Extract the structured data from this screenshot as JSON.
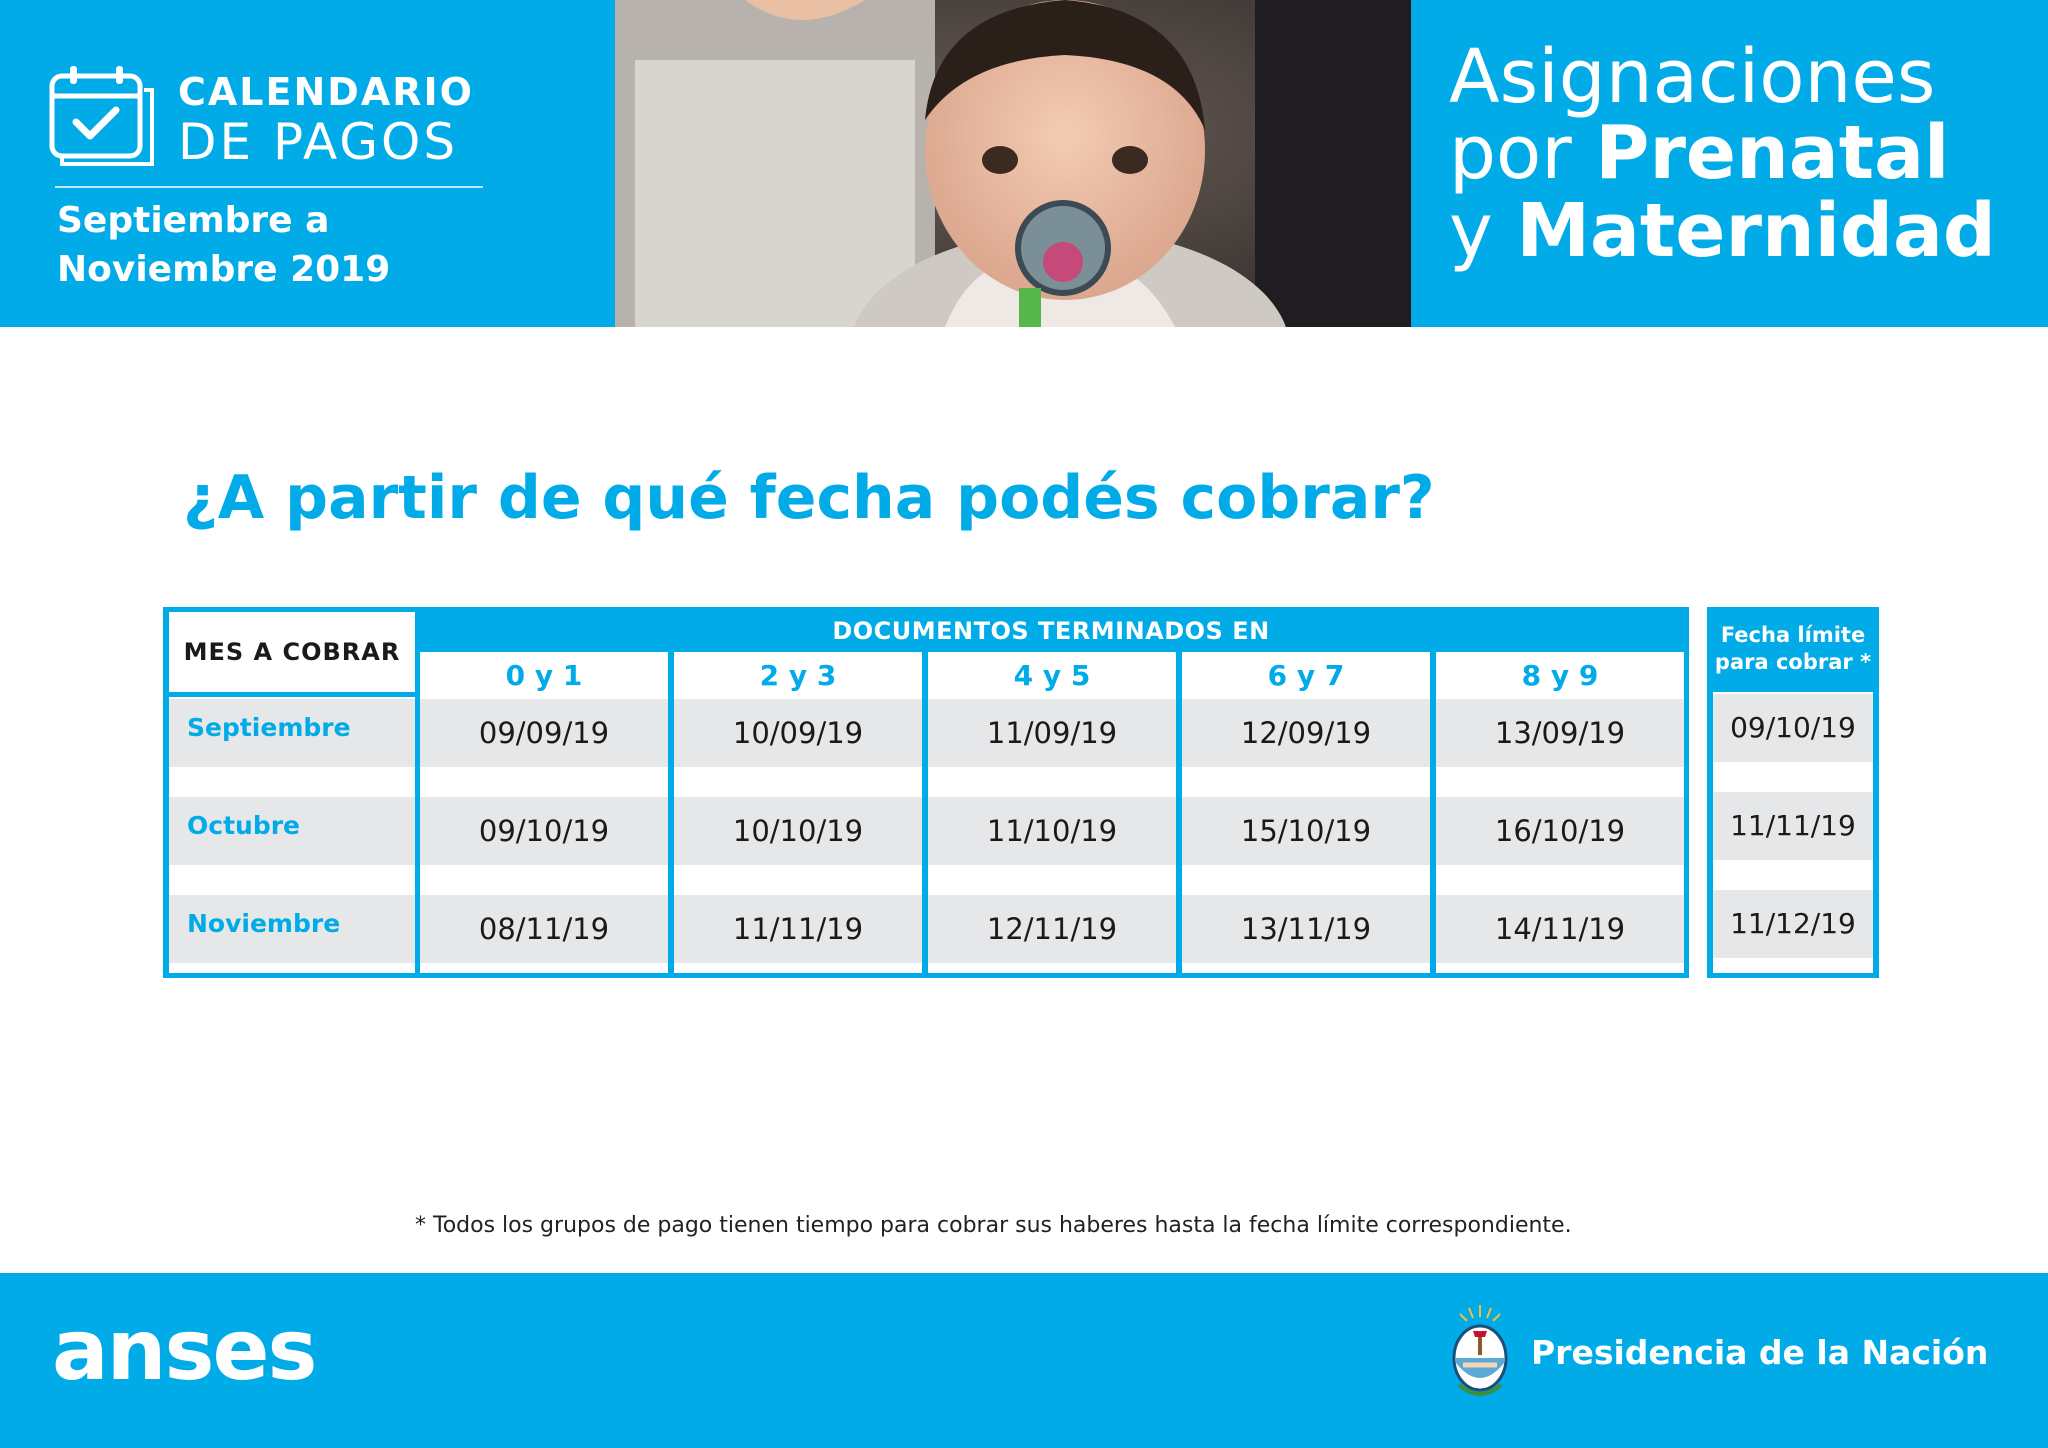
{
  "header": {
    "calendar_title_1": "CALENDARIO",
    "calendar_title_2": "DE PAGOS",
    "period_line_1": "Septiembre a",
    "period_line_2": "Noviembre 2019",
    "main_title": {
      "line1": "Asignaciones",
      "line2_light": "por ",
      "line2_bold": "Prenatal",
      "line3_light": "y ",
      "line3_bold": "Maternidad"
    },
    "icon": "calendar-check-icon"
  },
  "question": "¿A partir de qué fecha podés cobrar?",
  "table": {
    "month_header": "MES A COBRAR",
    "documents_header": "DOCUMENTOS TERMINADOS EN",
    "columns": [
      "0 y 1",
      "2 y 3",
      "4 y 5",
      "6 y 7",
      "8 y 9"
    ],
    "rows": [
      {
        "month": "Septiembre",
        "dates": [
          "09/09/19",
          "10/09/19",
          "11/09/19",
          "12/09/19",
          "13/09/19"
        ],
        "limit": "09/10/19"
      },
      {
        "month": "Octubre",
        "dates": [
          "09/10/19",
          "10/10/19",
          "11/10/19",
          "15/10/19",
          "16/10/19"
        ],
        "limit": "11/11/19"
      },
      {
        "month": "Noviembre",
        "dates": [
          "08/11/19",
          "11/11/19",
          "12/11/19",
          "13/11/19",
          "14/11/19"
        ],
        "limit": "11/12/19"
      }
    ],
    "limit_header_1": "Fecha límite",
    "limit_header_2": "para cobrar *"
  },
  "footnote": "* Todos los grupos de pago tienen tiempo para cobrar sus haberes hasta la fecha límite correspondiente.",
  "footer": {
    "brand": "anses",
    "presidency": "Presidencia de la Nación",
    "seal_icon": "national-coat-of-arms-icon"
  },
  "colors": {
    "accent": "#00abe8",
    "cell_bg": "#e6e7e9"
  }
}
